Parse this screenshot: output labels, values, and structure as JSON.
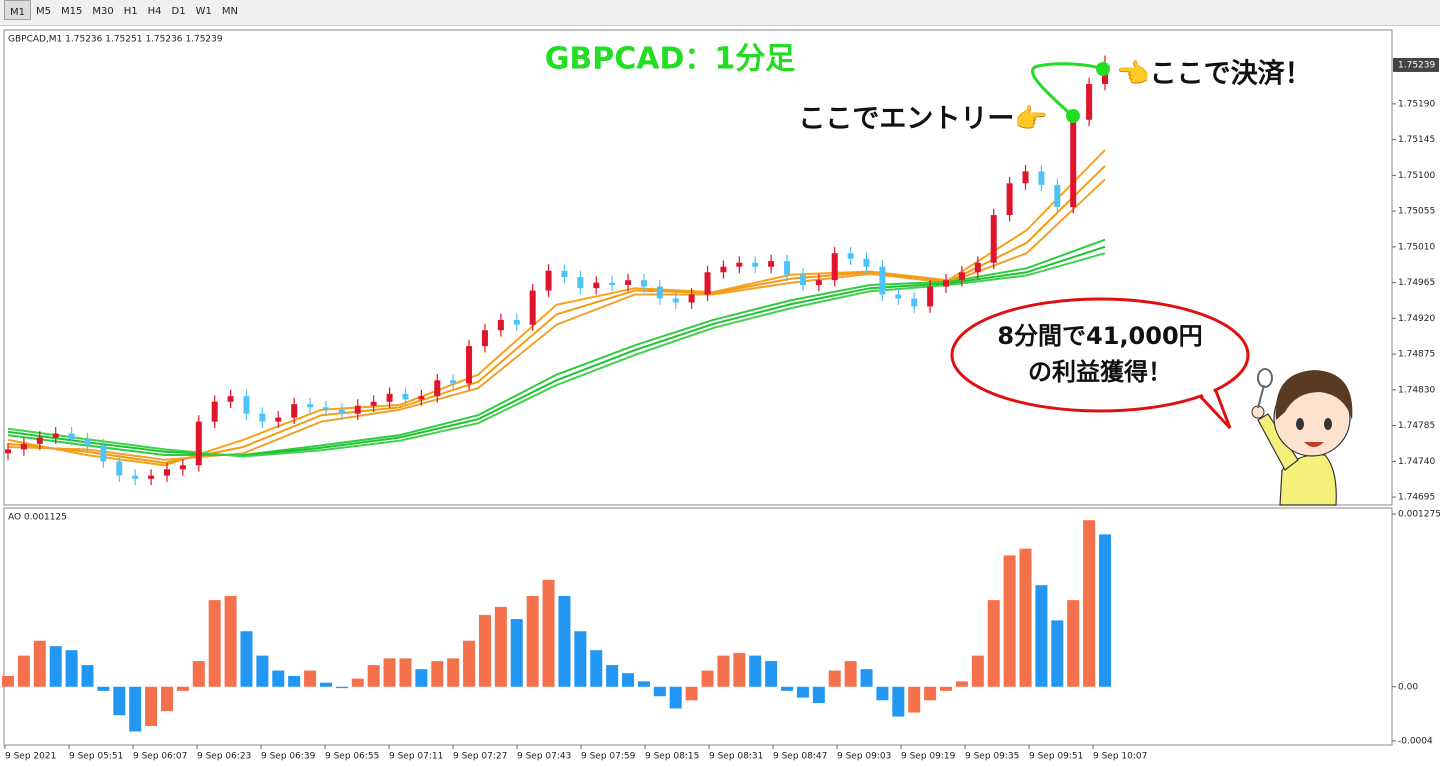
{
  "toolbar": {
    "timeframes": [
      "M1",
      "M5",
      "M15",
      "M30",
      "H1",
      "H4",
      "D1",
      "W1",
      "MN"
    ]
  },
  "chart_data": [
    {
      "type": "candlestick",
      "info": "GBPCAD,M1  1.75236 1.75251 1.75236 1.75239",
      "title": "GBPCAD：1分足",
      "entry_note": "ここでエントリー👉",
      "exit_note": "👈ここで決済！",
      "callout": [
        "8分間で41,000円",
        "の利益獲得！"
      ],
      "up_color": "#e0142a",
      "down_color": "#4fc3f7",
      "open": [
        1.7475,
        1.74755,
        1.74762,
        1.7477,
        1.74775,
        1.74768,
        1.7476,
        1.7474,
        1.74722,
        1.74718,
        1.74722,
        1.7473,
        1.74735,
        1.7479,
        1.74815,
        1.74822,
        1.748,
        1.7479,
        1.74795,
        1.74812,
        1.74808,
        1.74805,
        1.748,
        1.7481,
        1.74815,
        1.74825,
        1.74818,
        1.74822,
        1.74842,
        1.74838,
        1.74885,
        1.74905,
        1.74918,
        1.74912,
        1.74955,
        1.7498,
        1.74972,
        1.74958,
        1.74965,
        1.74962,
        1.74968,
        1.7496,
        1.74945,
        1.7494,
        1.7495,
        1.74978,
        1.74985,
        1.7499,
        1.74985,
        1.74992,
        1.74975,
        1.74962,
        1.74968,
        1.75002,
        1.74995,
        1.74985,
        1.7495,
        1.74945,
        1.74935,
        1.7496,
        1.74968,
        1.74978,
        1.7499,
        1.7505,
        1.7509,
        1.75105,
        1.75088,
        1.7506,
        1.7517,
        1.75215
      ],
      "high": [
        1.74763,
        1.7477,
        1.74778,
        1.74783,
        1.74783,
        1.74776,
        1.74768,
        1.74748,
        1.7473,
        1.7473,
        1.74738,
        1.74743,
        1.74798,
        1.74823,
        1.7483,
        1.7483,
        1.74808,
        1.74803,
        1.7482,
        1.7482,
        1.74816,
        1.74813,
        1.74818,
        1.74823,
        1.74833,
        1.74833,
        1.7483,
        1.7485,
        1.7485,
        1.74893,
        1.74913,
        1.74926,
        1.74926,
        1.74963,
        1.74988,
        1.74988,
        1.7498,
        1.74973,
        1.74973,
        1.74976,
        1.74976,
        1.74968,
        1.74953,
        1.74958,
        1.74986,
        1.74993,
        1.74998,
        1.74998,
        1.75,
        1.75,
        1.74983,
        1.74976,
        1.7501,
        1.7501,
        1.75003,
        1.74993,
        1.74958,
        1.74953,
        1.74968,
        1.74976,
        1.74986,
        1.74998,
        1.75058,
        1.75098,
        1.75113,
        1.75113,
        1.75096,
        1.75178,
        1.75223,
        1.75251
      ],
      "low": [
        1.74742,
        1.74747,
        1.74754,
        1.74762,
        1.7476,
        1.74752,
        1.74732,
        1.74714,
        1.7471,
        1.7471,
        1.74714,
        1.74722,
        1.74727,
        1.74782,
        1.74807,
        1.74792,
        1.74782,
        1.74782,
        1.74787,
        1.748,
        1.74797,
        1.74792,
        1.74792,
        1.74802,
        1.74807,
        1.7481,
        1.7481,
        1.74814,
        1.7483,
        1.7483,
        1.74877,
        1.74897,
        1.74904,
        1.74904,
        1.74947,
        1.74964,
        1.7495,
        1.7495,
        1.74954,
        1.74954,
        1.74952,
        1.74937,
        1.74932,
        1.74932,
        1.74942,
        1.7497,
        1.74977,
        1.74977,
        1.74977,
        1.74967,
        1.74954,
        1.74954,
        1.7496,
        1.74987,
        1.74977,
        1.74942,
        1.74937,
        1.74927,
        1.74927,
        1.74952,
        1.7496,
        1.7497,
        1.74982,
        1.75042,
        1.75082,
        1.7508,
        1.75052,
        1.75052,
        1.75162,
        1.75207
      ],
      "close": [
        1.74755,
        1.74762,
        1.7477,
        1.74775,
        1.74768,
        1.7476,
        1.7474,
        1.74722,
        1.74718,
        1.74722,
        1.7473,
        1.74735,
        1.7479,
        1.74815,
        1.74822,
        1.748,
        1.7479,
        1.74795,
        1.74812,
        1.74808,
        1.74805,
        1.748,
        1.7481,
        1.74815,
        1.74825,
        1.74818,
        1.74822,
        1.74842,
        1.74838,
        1.74885,
        1.74905,
        1.74918,
        1.74912,
        1.74955,
        1.7498,
        1.74972,
        1.74958,
        1.74965,
        1.74962,
        1.74968,
        1.7496,
        1.74945,
        1.7494,
        1.7495,
        1.74978,
        1.74985,
        1.7499,
        1.74985,
        1.74992,
        1.74975,
        1.74962,
        1.74968,
        1.75002,
        1.74995,
        1.74985,
        1.7495,
        1.74945,
        1.74935,
        1.7496,
        1.74968,
        1.74978,
        1.7499,
        1.7505,
        1.7509,
        1.75105,
        1.75088,
        1.7506,
        1.7517,
        1.75215,
        1.75239
      ],
      "lines": [
        {
          "color": "#f7a21b",
          "values": [
            1.74767,
            1.74748,
            1.74735,
            1.74767,
            1.74805,
            1.74811,
            1.74849,
            1.74937,
            1.74958,
            1.74953,
            1.74975,
            1.74979,
            1.74968,
            1.75031,
            1.75132
          ]
        },
        {
          "color": "#f39c12",
          "values": [
            1.74762,
            1.74752,
            1.74738,
            1.74758,
            1.74798,
            1.74808,
            1.7484,
            1.74925,
            1.74955,
            1.74952,
            1.7497,
            1.74978,
            1.74966,
            1.75015,
            1.75112
          ]
        },
        {
          "color": "#f0a030",
          "values": [
            1.74758,
            1.74755,
            1.74742,
            1.7475,
            1.7479,
            1.74805,
            1.74832,
            1.74912,
            1.7495,
            1.7495,
            1.74965,
            1.74976,
            1.74965,
            1.75002,
            1.75095
          ]
        },
        {
          "color": "#2ecc40",
          "values": [
            1.74773,
            1.7476,
            1.74748,
            1.74748,
            1.7476,
            1.74773,
            1.74798,
            1.74849,
            1.74886,
            1.74918,
            1.74943,
            1.74962,
            1.74966,
            1.74983,
            1.75019
          ]
        },
        {
          "color": "#22c034",
          "values": [
            1.74777,
            1.74764,
            1.74752,
            1.74747,
            1.74757,
            1.7477,
            1.74793,
            1.74842,
            1.7488,
            1.74913,
            1.74938,
            1.74958,
            1.74964,
            1.74978,
            1.7501
          ]
        },
        {
          "color": "#3fd24a",
          "values": [
            1.74781,
            1.74768,
            1.74755,
            1.74746,
            1.74754,
            1.74766,
            1.74788,
            1.74836,
            1.74874,
            1.74908,
            1.74933,
            1.74954,
            1.74962,
            1.74974,
            1.75002
          ]
        }
      ],
      "last_price_label": "1.75239",
      "ylim": [
        1.74685,
        1.75283
      ],
      "yticks": [
        {
          "value": 1.7519,
          "label": "1.75190"
        },
        {
          "value": 1.75145,
          "label": "1.75145"
        },
        {
          "value": 1.751,
          "label": "1.75100"
        },
        {
          "value": 1.75055,
          "label": "1.75055"
        },
        {
          "value": 1.7501,
          "label": "1.75010"
        },
        {
          "value": 1.74965,
          "label": "1.74965"
        },
        {
          "value": 1.7492,
          "label": "1.74920"
        },
        {
          "value": 1.74875,
          "label": "1.74875"
        },
        {
          "value": 1.7483,
          "label": "1.74830"
        },
        {
          "value": 1.74785,
          "label": "1.74785"
        },
        {
          "value": 1.7474,
          "label": "1.74740"
        },
        {
          "value": 1.74695,
          "label": "1.74695"
        }
      ]
    },
    {
      "type": "bar",
      "label": "AO 0.001125",
      "up_color": "#f4714c",
      "down_color": "#2196f3",
      "values": [
        8e-05,
        0.00023,
        0.00034,
        0.0003,
        0.00027,
        0.00016,
        -3e-05,
        -0.00021,
        -0.00033,
        -0.00029,
        -0.00018,
        -3e-05,
        0.00019,
        0.00064,
        0.00067,
        0.00041,
        0.00023,
        0.00012,
        8e-05,
        0.00012,
        3e-05,
        -1e-05,
        6e-05,
        0.00016,
        0.00021,
        0.00021,
        0.00013,
        0.00019,
        0.00021,
        0.00034,
        0.00053,
        0.00059,
        0.0005,
        0.00067,
        0.00079,
        0.00067,
        0.00041,
        0.00027,
        0.00016,
        0.0001,
        4e-05,
        -7e-05,
        -0.00016,
        -0.0001,
        0.00012,
        0.00023,
        0.00025,
        0.00023,
        0.00019,
        -3e-05,
        -8e-05,
        -0.00012,
        0.00012,
        0.00019,
        0.00013,
        -0.0001,
        -0.00022,
        -0.00019,
        -0.0001,
        -3e-05,
        4e-05,
        0.00023,
        0.00064,
        0.00097,
        0.00102,
        0.00075,
        0.00049,
        0.00064,
        0.00123,
        0.001125
      ],
      "ylim": [
        -0.00043,
        0.00132
      ],
      "yticks": [
        0.001275,
        {
          "value": 0,
          "label": "0.00"
        },
        -0.0004
      ],
      "x_labels": [
        "9 Sep 2021",
        "9 Sep 05:51",
        "9 Sep 06:07",
        "9 Sep 06:23",
        "9 Sep 06:39",
        "9 Sep 06:55",
        "9 Sep 07:11",
        "9 Sep 07:27",
        "9 Sep 07:43",
        "9 Sep 07:59",
        "9 Sep 08:15",
        "9 Sep 08:31",
        "9 Sep 08:47",
        "9 Sep 09:03",
        "9 Sep 09:19",
        "9 Sep 09:35",
        "9 Sep 09:51",
        "9 Sep 10:07"
      ]
    }
  ]
}
